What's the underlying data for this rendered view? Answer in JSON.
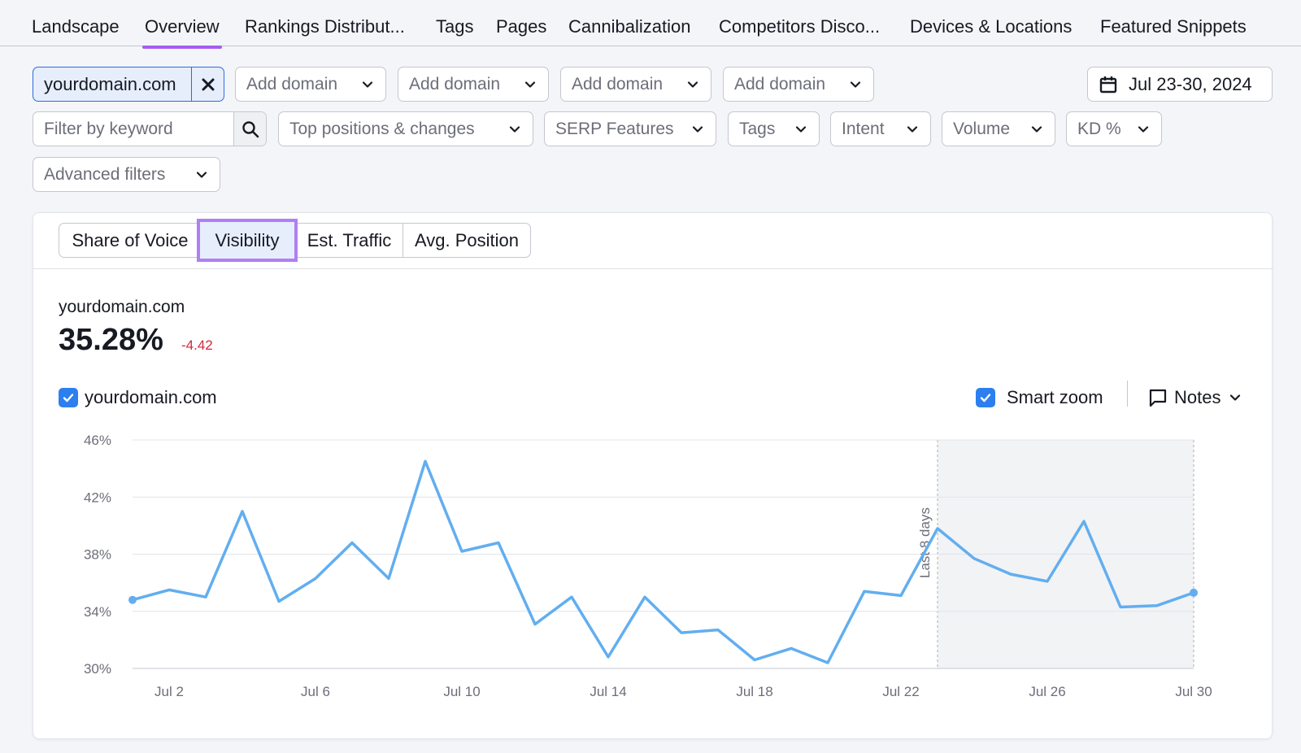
{
  "nav": {
    "tabs": [
      {
        "label": "Landscape",
        "active": false
      },
      {
        "label": "Overview",
        "active": true
      },
      {
        "label": "Rankings Distribut...",
        "active": false
      },
      {
        "label": "Tags",
        "active": false
      },
      {
        "label": "Pages",
        "active": false
      },
      {
        "label": "Cannibalization",
        "active": false
      },
      {
        "label": "Competitors Disco...",
        "active": false
      },
      {
        "label": "Devices & Locations",
        "active": false
      },
      {
        "label": "Featured Snippets",
        "active": false
      }
    ]
  },
  "domains": {
    "primary": "yourdomain.com",
    "add_placeholder": "Add domain"
  },
  "date_range": "Jul 23-30, 2024",
  "filters": {
    "keyword_placeholder": "Filter by keyword",
    "top_positions": "Top positions & changes",
    "serp_features": "SERP Features",
    "tags": "Tags",
    "intent": "Intent",
    "volume": "Volume",
    "kd": "KD %",
    "advanced": "Advanced filters"
  },
  "metric_tabs": [
    {
      "label": "Share of Voice",
      "active": false
    },
    {
      "label": "Visibility",
      "active": true
    },
    {
      "label": "Est. Traffic",
      "active": false
    },
    {
      "label": "Avg. Position",
      "active": false
    }
  ],
  "metric": {
    "domain": "yourdomain.com",
    "value": "35.28%",
    "delta": "-4.42"
  },
  "legend": {
    "series_label": "yourdomain.com",
    "checked": true
  },
  "controls": {
    "smart_zoom_label": "Smart zoom",
    "smart_zoom_checked": true,
    "notes_label": "Notes"
  },
  "colors": {
    "accent": "#2d7ff0",
    "line": "#62aef0",
    "highlight": "#b07ef5",
    "negative": "#d1293d"
  },
  "chart_data": {
    "type": "line",
    "title": "",
    "xlabel": "",
    "ylabel": "",
    "ylim": [
      30,
      46
    ],
    "y_ticks": [
      "46%",
      "42%",
      "38%",
      "34%",
      "30%"
    ],
    "x_ticks": [
      "Jul 2",
      "Jul 6",
      "Jul 10",
      "Jul 14",
      "Jul 18",
      "Jul 22",
      "Jul 26",
      "Jul 30"
    ],
    "x": [
      "Jul 1",
      "Jul 2",
      "Jul 3",
      "Jul 4",
      "Jul 5",
      "Jul 6",
      "Jul 7",
      "Jul 8",
      "Jul 9",
      "Jul 10",
      "Jul 11",
      "Jul 12",
      "Jul 13",
      "Jul 14",
      "Jul 15",
      "Jul 16",
      "Jul 17",
      "Jul 18",
      "Jul 19",
      "Jul 20",
      "Jul 21",
      "Jul 22",
      "Jul 23",
      "Jul 24",
      "Jul 25",
      "Jul 26",
      "Jul 27",
      "Jul 28",
      "Jul 29",
      "Jul 30"
    ],
    "series": [
      {
        "name": "yourdomain.com",
        "values": [
          34.8,
          35.5,
          35.0,
          41.0,
          34.7,
          36.3,
          38.8,
          36.3,
          44.5,
          38.2,
          38.8,
          33.1,
          35.0,
          30.8,
          35.0,
          32.5,
          32.7,
          30.6,
          31.4,
          30.4,
          35.4,
          35.1,
          39.8,
          37.7,
          36.6,
          36.1,
          40.3,
          34.3,
          34.4,
          35.3
        ]
      }
    ],
    "highlight_range": {
      "from": "Jul 23",
      "to": "Jul 30",
      "label": "Last 8 days"
    },
    "grid": true
  }
}
